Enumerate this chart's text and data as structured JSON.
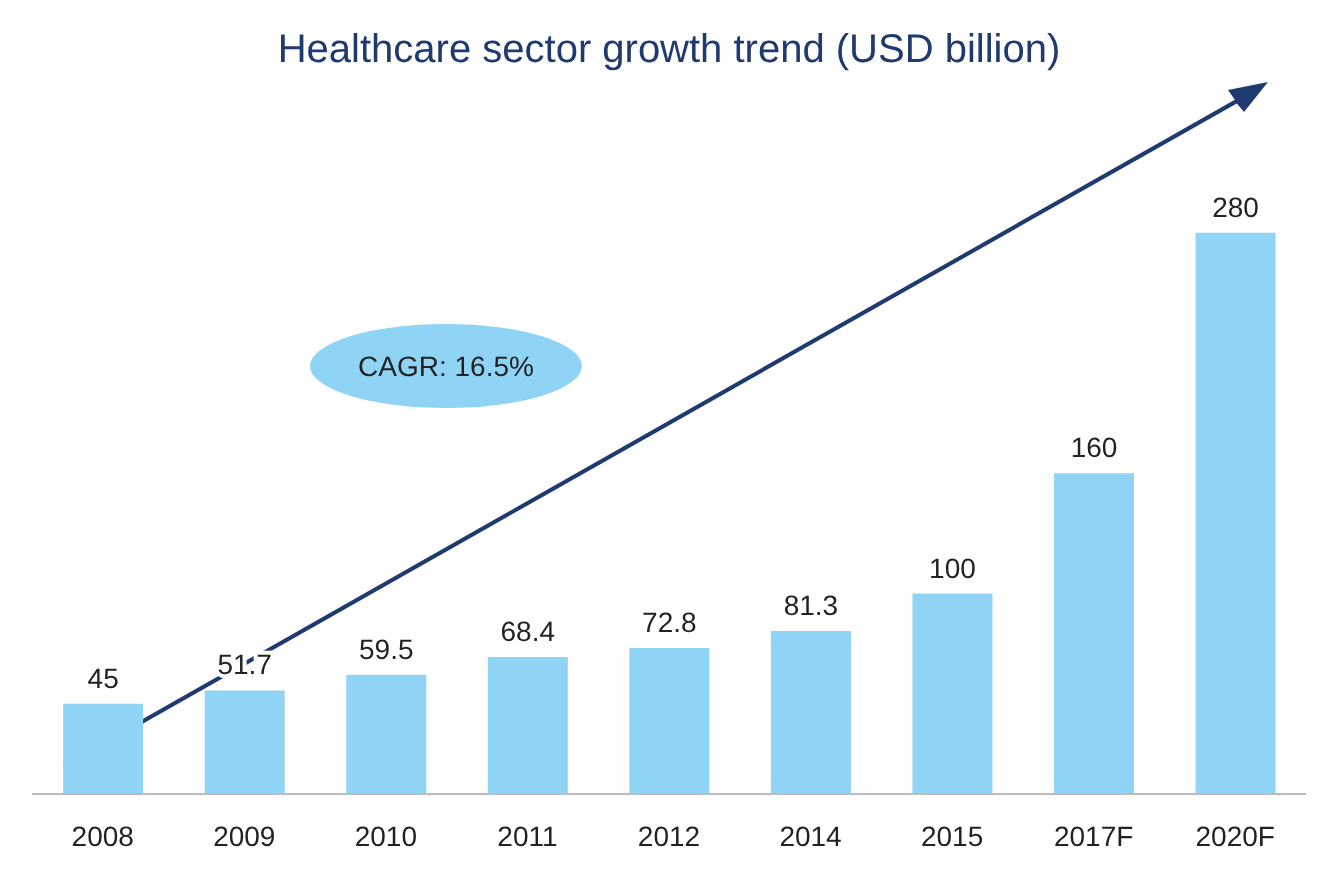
{
  "chart_data": {
    "type": "bar",
    "title": "Healthcare sector growth trend (USD billion)",
    "categories": [
      "2008",
      "2009",
      "2010",
      "2011",
      "2012",
      "2014",
      "2015",
      "2017F",
      "2020F"
    ],
    "values": [
      45,
      51.7,
      59.5,
      68.4,
      72.8,
      81.3,
      100,
      160,
      280
    ],
    "color": "#8fd4f4",
    "data_labels": true,
    "annotations": [
      "CAGR: 16.5%"
    ]
  }
}
